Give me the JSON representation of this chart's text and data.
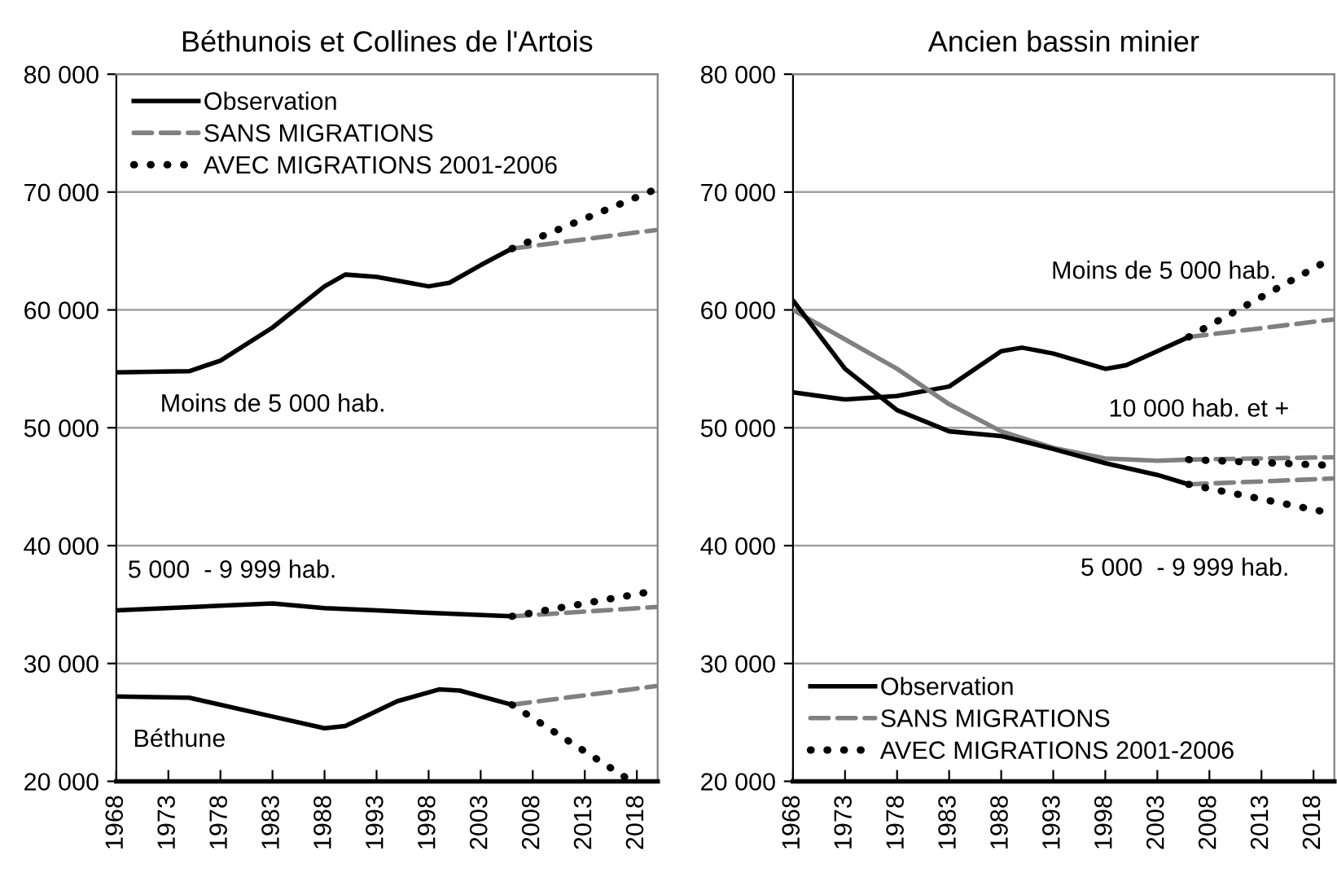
{
  "chart_data": [
    {
      "type": "line",
      "title": "Béthunois et Collines de l'Artois",
      "xlim": [
        1968,
        2020
      ],
      "xticks": [
        1968,
        1973,
        1978,
        1983,
        1988,
        1993,
        1998,
        2003,
        2008,
        2013,
        2018
      ],
      "ylim": [
        20000,
        80000
      ],
      "yticks": [
        {
          "value": 20000,
          "label": "20 000"
        },
        {
          "value": 30000,
          "label": "30 000"
        },
        {
          "value": 40000,
          "label": "40 000"
        },
        {
          "value": 50000,
          "label": "50 000"
        },
        {
          "value": 60000,
          "label": "60 000"
        },
        {
          "value": 70000,
          "label": "70 000"
        },
        {
          "value": 80000,
          "label": "80 000"
        }
      ],
      "grid": "y",
      "legend": "top left",
      "marker": "none",
      "series": [
        {
          "name": "Observation",
          "color": "#000000",
          "line_style": "solid",
          "x": [
            1968,
            1975,
            1978,
            1983,
            1988,
            1990,
            1993,
            1998,
            2000,
            2003,
            2006
          ],
          "values": [
            54700,
            54800,
            55700,
            58500,
            62000,
            63000,
            62800,
            62000,
            62300,
            63800,
            65200
          ]
        },
        {
          "name": "SANS MIGRATIONS",
          "color": "#808080",
          "line_style": "dashed",
          "x": [
            2006,
            2020
          ],
          "values": [
            65200,
            66800
          ]
        },
        {
          "name": "AVEC MIGRATIONS 2001-2006",
          "color": "#000000",
          "line_style": "dotted",
          "x": [
            2006,
            2020
          ],
          "values": [
            65200,
            70300
          ]
        },
        {
          "color": "#000000",
          "line_style": "solid",
          "x": [
            1968,
            1978,
            1983,
            1988,
            1993,
            1998,
            2006
          ],
          "values": [
            34500,
            34900,
            35100,
            34700,
            34500,
            34300,
            34000
          ]
        },
        {
          "color": "#808080",
          "line_style": "dashed",
          "x": [
            2006,
            2020
          ],
          "values": [
            34000,
            34800
          ]
        },
        {
          "color": "#000000",
          "line_style": "dotted",
          "x": [
            2006,
            2020
          ],
          "values": [
            34000,
            36200
          ]
        },
        {
          "color": "#000000",
          "line_style": "solid",
          "x": [
            1968,
            1975,
            1983,
            1988,
            1990,
            1995,
            1999,
            2001,
            2006
          ],
          "values": [
            27200,
            27100,
            25500,
            24500,
            24700,
            26800,
            27800,
            27700,
            26500
          ]
        },
        {
          "color": "#808080",
          "line_style": "dashed",
          "x": [
            2006,
            2020
          ],
          "values": [
            26500,
            28100
          ]
        },
        {
          "color": "#000000",
          "line_style": "dotted",
          "x": [
            2006,
            2017.5
          ],
          "values": [
            26500,
            20000
          ]
        }
      ],
      "annotations": [
        "Moins de 5 000 hab.",
        "5 000  - 9 999 hab.",
        "Béthune"
      ]
    },
    {
      "type": "line",
      "title": "Ancien bassin minier",
      "xlim": [
        1968,
        2020
      ],
      "xticks": [
        1968,
        1973,
        1978,
        1983,
        1988,
        1993,
        1998,
        2003,
        2008,
        2013,
        2018
      ],
      "ylim": [
        20000,
        80000
      ],
      "yticks": [
        {
          "value": 20000,
          "label": "20 000"
        },
        {
          "value": 30000,
          "label": "30 000"
        },
        {
          "value": 40000,
          "label": "40 000"
        },
        {
          "value": 50000,
          "label": "50 000"
        },
        {
          "value": 60000,
          "label": "60 000"
        },
        {
          "value": 70000,
          "label": "70 000"
        },
        {
          "value": 80000,
          "label": "80 000"
        }
      ],
      "grid": "y",
      "legend": "bottom left",
      "marker": "none",
      "series": [
        {
          "name": "Observation",
          "color": "#000000",
          "line_style": "solid",
          "x": [
            1968,
            1973,
            1978,
            1983,
            1988,
            1990,
            1993,
            1998,
            2000,
            2003,
            2006
          ],
          "values": [
            53000,
            52400,
            52700,
            53500,
            56500,
            56800,
            56300,
            55000,
            55300,
            56500,
            57700
          ]
        },
        {
          "name": "SANS MIGRATIONS",
          "color": "#808080",
          "line_style": "dashed",
          "x": [
            2006,
            2020
          ],
          "values": [
            57700,
            59200
          ]
        },
        {
          "name": "AVEC MIGRATIONS 2001-2006",
          "color": "#000000",
          "line_style": "dotted",
          "x": [
            2006,
            2020
          ],
          "values": [
            57700,
            64500
          ]
        },
        {
          "color": "#808080",
          "line_style": "solid",
          "x": [
            1968,
            1973,
            1978,
            1983,
            1988,
            1993,
            1998,
            2003,
            2006
          ],
          "values": [
            60000,
            57500,
            55000,
            52000,
            49700,
            48300,
            47400,
            47200,
            47300
          ]
        },
        {
          "color": "#808080",
          "line_style": "dashed",
          "x": [
            2006,
            2020
          ],
          "values": [
            47300,
            47500
          ]
        },
        {
          "color": "#000000",
          "line_style": "dotted",
          "x": [
            2006,
            2020
          ],
          "values": [
            47300,
            46800
          ]
        },
        {
          "color": "#000000",
          "line_style": "solid",
          "x": [
            1968,
            1973,
            1978,
            1983,
            1988,
            1993,
            1998,
            2003,
            2006
          ],
          "values": [
            60800,
            55000,
            51500,
            49700,
            49300,
            48200,
            47000,
            46000,
            45200
          ]
        },
        {
          "color": "#808080",
          "line_style": "dashed",
          "x": [
            2006,
            2020
          ],
          "values": [
            45200,
            45700
          ]
        },
        {
          "color": "#000000",
          "line_style": "dotted",
          "x": [
            2006,
            2020
          ],
          "values": [
            45200,
            42700
          ]
        }
      ],
      "annotations": [
        "Moins de 5 000 hab.",
        "10 000 hab. et +",
        "5 000  - 9 999 hab."
      ]
    }
  ]
}
